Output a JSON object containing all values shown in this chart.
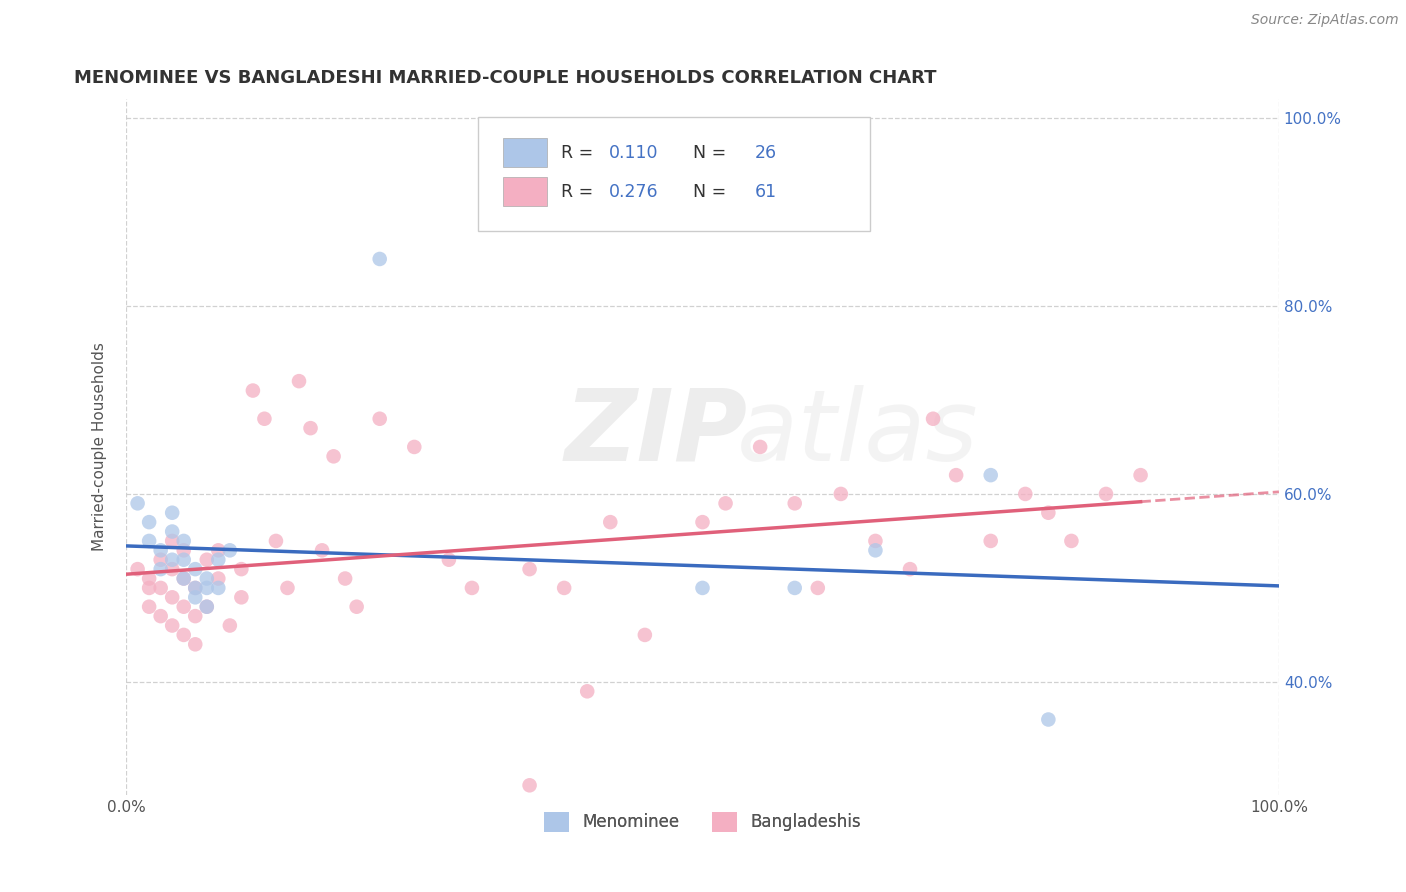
{
  "title": "MENOMINEE VS BANGLADESHI MARRIED-COUPLE HOUSEHOLDS CORRELATION CHART",
  "source": "Source: ZipAtlas.com",
  "ylabel": "Married-couple Households",
  "xlim": [
    0,
    1.0
  ],
  "ylim": [
    0.28,
    1.02
  ],
  "menominee_R": "0.110",
  "menominee_N": "26",
  "bangladeshi_R": "0.276",
  "bangladeshi_N": "61",
  "menominee_color": "#adc6e8",
  "bangladeshi_color": "#f4afc2",
  "menominee_line_color": "#3a6bbf",
  "bangladeshi_line_color": "#e0607a",
  "background_color": "#ffffff",
  "grid_color": "#cccccc",
  "menominee_x": [
    0.01,
    0.02,
    0.02,
    0.03,
    0.03,
    0.04,
    0.04,
    0.04,
    0.05,
    0.05,
    0.05,
    0.06,
    0.06,
    0.06,
    0.07,
    0.07,
    0.07,
    0.08,
    0.08,
    0.09,
    0.22,
    0.5,
    0.58,
    0.65,
    0.75,
    0.8
  ],
  "menominee_y": [
    0.59,
    0.55,
    0.57,
    0.52,
    0.54,
    0.56,
    0.53,
    0.58,
    0.51,
    0.55,
    0.53,
    0.5,
    0.49,
    0.52,
    0.48,
    0.51,
    0.5,
    0.53,
    0.5,
    0.54,
    0.85,
    0.5,
    0.5,
    0.54,
    0.62,
    0.36
  ],
  "bangladeshi_x": [
    0.01,
    0.02,
    0.02,
    0.02,
    0.03,
    0.03,
    0.03,
    0.04,
    0.04,
    0.04,
    0.04,
    0.05,
    0.05,
    0.05,
    0.05,
    0.06,
    0.06,
    0.06,
    0.07,
    0.07,
    0.08,
    0.08,
    0.09,
    0.1,
    0.1,
    0.11,
    0.12,
    0.13,
    0.14,
    0.15,
    0.16,
    0.17,
    0.18,
    0.19,
    0.2,
    0.22,
    0.25,
    0.28,
    0.3,
    0.35,
    0.38,
    0.4,
    0.42,
    0.45,
    0.5,
    0.52,
    0.55,
    0.58,
    0.6,
    0.62,
    0.65,
    0.68,
    0.7,
    0.72,
    0.75,
    0.78,
    0.8,
    0.82,
    0.85,
    0.88,
    0.35
  ],
  "bangladeshi_y": [
    0.52,
    0.48,
    0.5,
    0.51,
    0.47,
    0.5,
    0.53,
    0.46,
    0.49,
    0.52,
    0.55,
    0.45,
    0.48,
    0.51,
    0.54,
    0.44,
    0.47,
    0.5,
    0.53,
    0.48,
    0.51,
    0.54,
    0.46,
    0.49,
    0.52,
    0.71,
    0.68,
    0.55,
    0.5,
    0.72,
    0.67,
    0.54,
    0.64,
    0.51,
    0.48,
    0.68,
    0.65,
    0.53,
    0.5,
    0.52,
    0.5,
    0.39,
    0.57,
    0.45,
    0.57,
    0.59,
    0.65,
    0.59,
    0.5,
    0.6,
    0.55,
    0.52,
    0.68,
    0.62,
    0.55,
    0.6,
    0.58,
    0.55,
    0.6,
    0.62,
    0.29
  ],
  "xticks": [
    0.0,
    0.2,
    0.4,
    0.6,
    0.8,
    1.0
  ],
  "xticklabels_left": [
    "0.0%",
    "",
    "",
    "",
    "",
    "100.0%"
  ],
  "yticks": [
    0.4,
    0.6,
    0.8,
    1.0
  ],
  "yticklabels_right": [
    "40.0%",
    "60.0%",
    "80.0%",
    "100.0%"
  ]
}
